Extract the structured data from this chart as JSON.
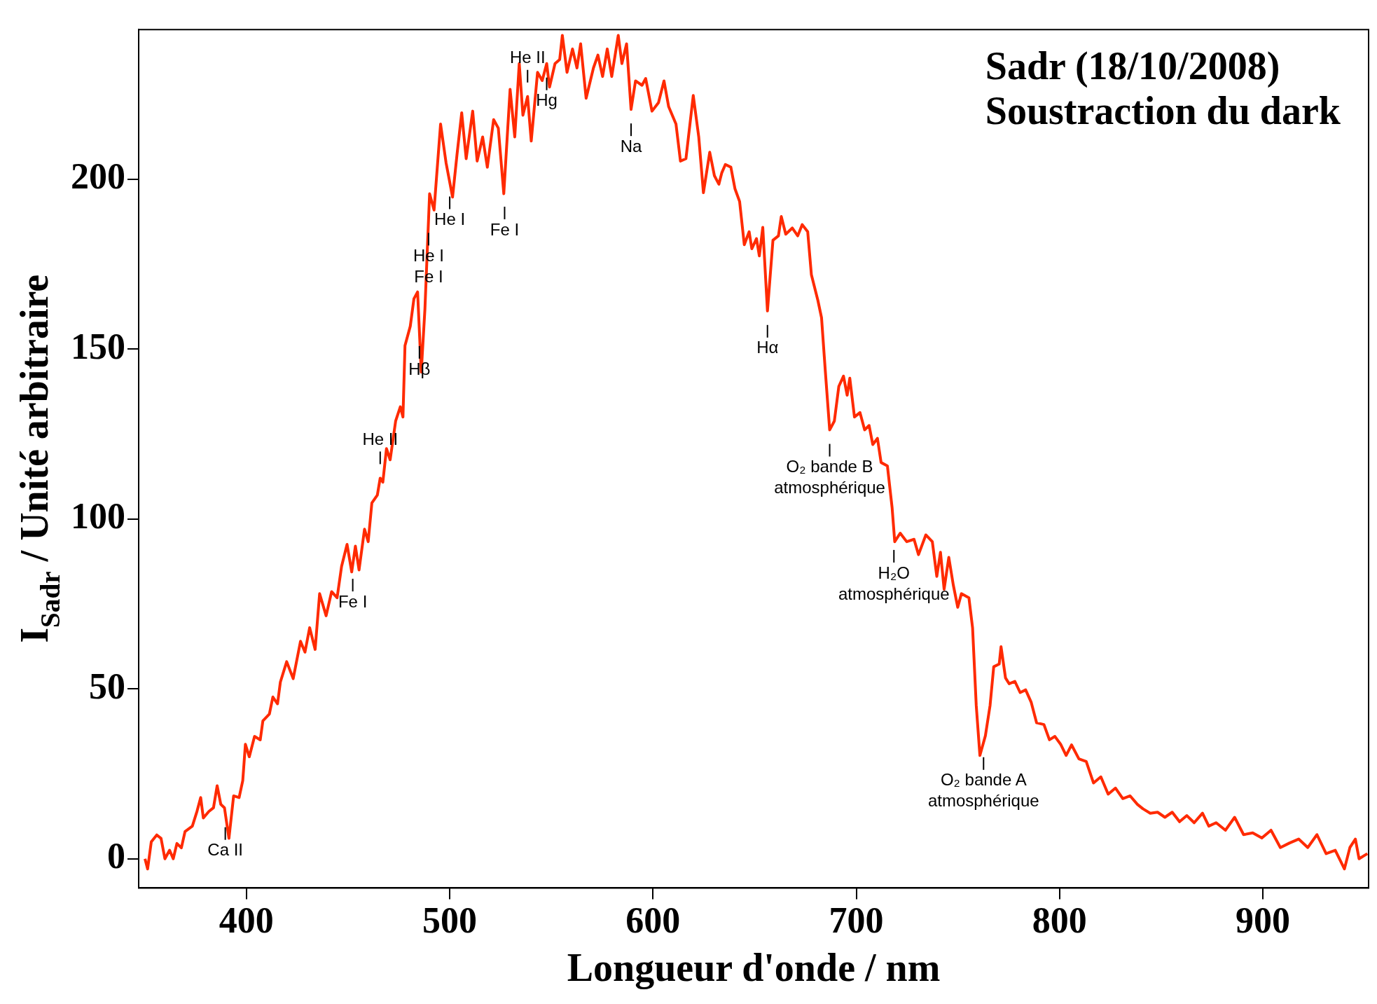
{
  "chart_data": {
    "type": "line",
    "title": "Sadr (18/10/2008)\nSoustraction du dark",
    "xlabel": "Longueur d'onde / nm",
    "ylabel": "I$_{Sadr}$ / Unité arbitraire",
    "color": "#ff2a00",
    "xlim": [
      347,
      952
    ],
    "ylim": [
      -8.6,
      244
    ],
    "xticks": [
      400,
      500,
      600,
      700,
      800,
      900
    ],
    "yticks": [
      0,
      50,
      100,
      150,
      200
    ],
    "x": [
      350.1,
      351.4,
      353.2,
      355.9,
      358,
      359.9,
      362.2,
      364,
      365.8,
      368,
      369.8,
      373.4,
      375.7,
      377.5,
      378.8,
      381.5,
      383.8,
      385.6,
      387.4,
      389.2,
      391.4,
      393.7,
      396.4,
      398.2,
      399.5,
      401.4,
      404,
      406.8,
      408.1,
      411.3,
      413,
      415.3,
      416.7,
      419.8,
      423,
      426.6,
      428.8,
      431.1,
      433.8,
      436,
      439.2,
      441.9,
      444.6,
      446.8,
      449.5,
      451.8,
      453.6,
      455.4,
      458.1,
      459.9,
      461.7,
      464.4,
      465.8,
      467.1,
      468.9,
      470.7,
      473.4,
      475.7,
      477,
      478,
      480.6,
      482.4,
      484.2,
      486,
      487.8,
      490.1,
      492.3,
      495.5,
      498.2,
      501.4,
      503.6,
      505.9,
      508.1,
      511.3,
      513.5,
      516.2,
      518.5,
      521.6,
      523.9,
      526.6,
      529.7,
      532,
      534.2,
      536,
      538.3,
      540.1,
      543.2,
      545.5,
      547.7,
      549.1,
      551.8,
      554.1,
      555.4,
      557.7,
      560.4,
      562.6,
      564.4,
      567.1,
      570.7,
      572.9,
      575.2,
      577.5,
      579.7,
      582.9,
      584.7,
      587,
      589.2,
      591.4,
      594.6,
      596.4,
      599.5,
      602.7,
      605.4,
      607.7,
      611.3,
      613.5,
      616.2,
      619.8,
      622.5,
      624.8,
      627.9,
      630.2,
      632.4,
      633.8,
      635.6,
      638.3,
      640.3,
      642.6,
      644.9,
      647.3,
      648.6,
      650.9,
      652.3,
      654,
      656.3,
      659,
      661.7,
      663.1,
      665.3,
      668.5,
      671.2,
      673.4,
      676.1,
      677.9,
      681.1,
      682.9,
      684.7,
      686.9,
      689.2,
      691.4,
      693.7,
      695.5,
      696.8,
      699.1,
      701.8,
      704.1,
      706.3,
      708.1,
      710.4,
      712.2,
      715.3,
      717.6,
      718.9,
      721.6,
      724.8,
      728.4,
      730.6,
      734.2,
      737.4,
      739.6,
      741.4,
      743.2,
      745.5,
      747.7,
      749.9,
      751.7,
      755.4,
      757.2,
      759,
      760.8,
      763.5,
      765.8,
      767.6,
      770.3,
      771.2,
      773.4,
      775.2,
      778,
      780.6,
      783.3,
      786,
      788.7,
      792.3,
      795,
      797.7,
      800.5,
      803.2,
      805.9,
      809.5,
      813.1,
      816.7,
      820.3,
      823.9,
      827.5,
      831.1,
      834.7,
      838.3,
      841,
      844.6,
      848.2,
      851.8,
      855.4,
      859,
      862.6,
      866.2,
      870.3,
      873.4,
      877,
      881.6,
      886.1,
      890.5,
      895,
      899.5,
      904,
      908.6,
      913,
      917.6,
      922.1,
      926.6,
      931.1,
      935.6,
      940.1,
      942.8,
      945.5,
      947.3,
      951.4
    ],
    "values": [
      0,
      -3,
      5,
      7,
      6,
      0,
      2.5,
      0,
      4.5,
      3.2,
      8,
      9.6,
      14,
      18,
      12,
      13.9,
      15,
      21.5,
      16,
      15,
      6,
      18.5,
      18,
      23,
      33.7,
      30,
      36,
      35,
      40.6,
      42.6,
      47.6,
      45.6,
      52,
      58,
      53,
      64,
      60.8,
      68,
      61.6,
      78,
      71.5,
      78.6,
      76.8,
      86,
      92.5,
      84.4,
      92,
      85,
      97,
      93.3,
      104.7,
      107,
      112,
      110.8,
      120.7,
      117.4,
      128.8,
      133,
      130,
      151,
      156.7,
      164.8,
      166.8,
      143.2,
      161.7,
      195.7,
      190.9,
      216.2,
      204.8,
      194.7,
      207.3,
      219.5,
      206,
      220,
      205.3,
      212.4,
      203.5,
      217.5,
      215,
      195.7,
      226.4,
      212.4,
      234,
      218.8,
      224.3,
      211.2,
      231.4,
      229,
      234,
      227.1,
      234,
      235.2,
      242.3,
      231.4,
      238.3,
      232.7,
      239.8,
      223.8,
      232.7,
      236.5,
      230.2,
      238.3,
      230.2,
      242.3,
      234,
      239.8,
      220.5,
      228.9,
      227.6,
      229.6,
      220,
      222.5,
      228.9,
      221.3,
      216.2,
      205.3,
      206,
      224.6,
      212.4,
      196,
      207.9,
      201,
      198.5,
      201.8,
      204.3,
      203.5,
      197.2,
      193.4,
      180.7,
      184.5,
      179.5,
      182.5,
      177.4,
      185.8,
      161.2,
      182,
      183.3,
      189,
      183.8,
      185.6,
      183.3,
      186.6,
      184.5,
      171.9,
      164.3,
      159.2,
      144,
      126.2,
      128.8,
      139,
      142,
      136.4,
      141.4,
      130,
      131.3,
      126.2,
      127.5,
      121.9,
      123.7,
      116.6,
      115.6,
      103.4,
      93.3,
      95.8,
      93.3,
      94,
      89.5,
      95.3,
      93.3,
      83.1,
      90.2,
      79.3,
      88.7,
      80.6,
      74,
      78,
      76.8,
      67.9,
      45.1,
      30.4,
      36.2,
      45.1,
      56.5,
      57.3,
      62.4,
      53.2,
      51.5,
      52.2,
      48.9,
      49.7,
      46.1,
      40,
      39.5,
      35,
      36,
      33.7,
      30.4,
      33.5,
      29.4,
      28.6,
      22.3,
      24.1,
      19,
      20.8,
      17.7,
      18.5,
      16,
      14.7,
      13.4,
      13.7,
      12.2,
      13.7,
      10.9,
      12.7,
      10.6,
      13.4,
      9.6,
      10.6,
      8.4,
      12.2,
      7.1,
      7.6,
      6.1,
      8.4,
      3.3,
      4.6,
      5.8,
      3.3,
      7.1,
      1.5,
      2.5,
      -3,
      3.3,
      5.8,
      0,
      1.5
    ],
    "annotations": [
      {
        "text": "Ca II",
        "x": 389.6,
        "y": 13.4
      },
      {
        "text": "Fe I",
        "x": 452.3,
        "y": 86.5
      },
      {
        "text": "He II",
        "x": 465.8,
        "y": 112
      },
      {
        "text": "Hβ",
        "x": 485.1,
        "y": 155
      },
      {
        "text": "He I\nFe I",
        "x": 489.6,
        "y": 188.3
      },
      {
        "text": "He I",
        "x": 500,
        "y": 199
      },
      {
        "text": "Fe I",
        "x": 527,
        "y": 196
      },
      {
        "text": "He II",
        "x": 538.3,
        "y": 224.3
      },
      {
        "text": "Hg",
        "x": 547.7,
        "y": 234
      },
      {
        "text": "Na",
        "x": 589.2,
        "y": 220.5
      },
      {
        "text": "Hα",
        "x": 656.3,
        "y": 161.2
      },
      {
        "text": "O₂ bande B\natmosphérique",
        "x": 686.9,
        "y": 126.2
      },
      {
        "text": "H₂O\natmosphérique",
        "x": 718.5,
        "y": 95
      },
      {
        "text": "O₂ bande A\natmosphérique",
        "x": 762.6,
        "y": 34
      }
    ]
  }
}
